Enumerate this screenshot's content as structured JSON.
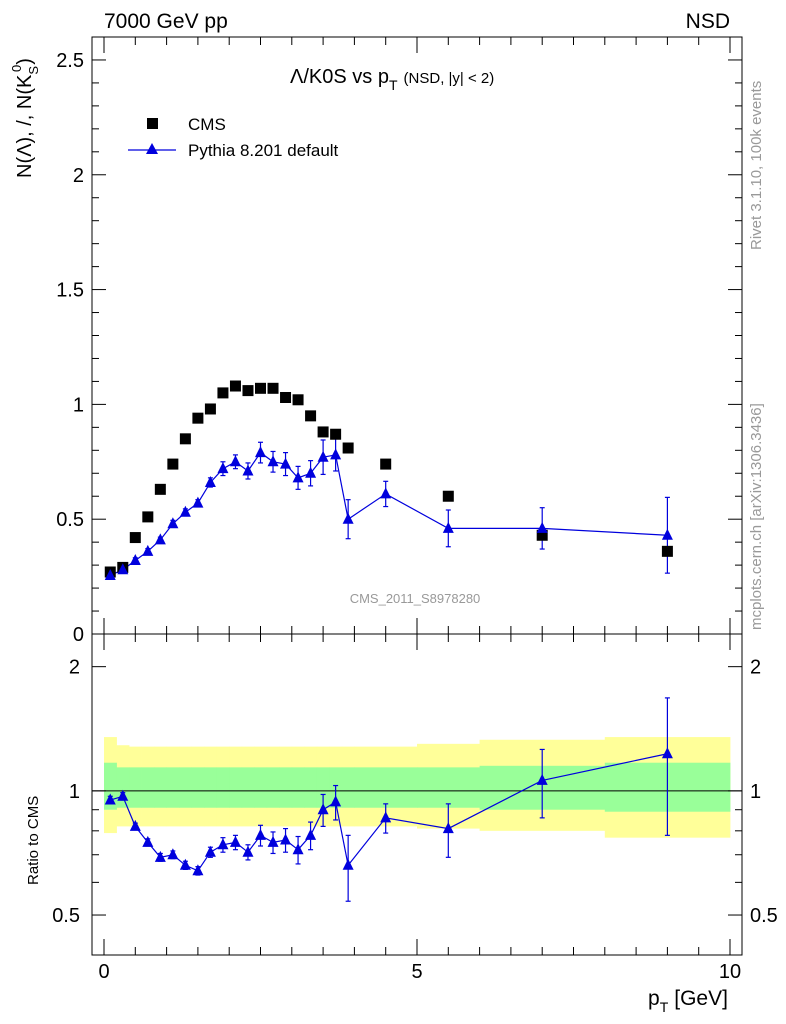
{
  "header": {
    "left": "7000 GeV pp",
    "right": "NSD"
  },
  "side_labels": {
    "rivet": "Rivet 3.1.10,  100k events",
    "mcplots": "mcplots.cern.ch [arXiv:1306.3436]"
  },
  "analysis_tag": "CMS_2011_S8978280",
  "colors": {
    "mc": "#0000dd",
    "data": "#000000",
    "band_outer": "#ffff99",
    "band_inner": "#99ff99"
  },
  "chart_data": [
    {
      "type": "scatter",
      "panel": "main",
      "title": "Λ/K0S vs pT",
      "title_main": "Λ/K0S vs p",
      "title_sub": "T",
      "title_extra": "(NSD, |y| < 2)",
      "ylabel": "N(Λ), /, N(K",
      "ylabel_sub": "S",
      "ylabel_sup": "0",
      "ylabel_end": ")",
      "xlim": [
        0,
        10
      ],
      "ylim": [
        0,
        2.6
      ],
      "y_tick_labels": [
        "0",
        "0.5",
        "1",
        "1.5",
        "2",
        "2.5"
      ],
      "series": [
        {
          "name": "CMS",
          "marker": "square",
          "points": [
            {
              "x": 0.1,
              "y": 0.27
            },
            {
              "x": 0.3,
              "y": 0.29
            },
            {
              "x": 0.5,
              "y": 0.42
            },
            {
              "x": 0.7,
              "y": 0.51
            },
            {
              "x": 0.9,
              "y": 0.63
            },
            {
              "x": 1.1,
              "y": 0.74
            },
            {
              "x": 1.3,
              "y": 0.85
            },
            {
              "x": 1.5,
              "y": 0.94
            },
            {
              "x": 1.7,
              "y": 0.98
            },
            {
              "x": 1.9,
              "y": 1.05
            },
            {
              "x": 2.1,
              "y": 1.08
            },
            {
              "x": 2.3,
              "y": 1.06
            },
            {
              "x": 2.5,
              "y": 1.07
            },
            {
              "x": 2.7,
              "y": 1.07
            },
            {
              "x": 2.9,
              "y": 1.03
            },
            {
              "x": 3.1,
              "y": 1.02
            },
            {
              "x": 3.3,
              "y": 0.95
            },
            {
              "x": 3.5,
              "y": 0.88
            },
            {
              "x": 3.7,
              "y": 0.87
            },
            {
              "x": 3.9,
              "y": 0.81
            },
            {
              "x": 4.5,
              "y": 0.74
            },
            {
              "x": 5.5,
              "y": 0.6
            },
            {
              "x": 7.0,
              "y": 0.43
            },
            {
              "x": 9.0,
              "y": 0.36
            }
          ]
        },
        {
          "name": "Pythia 8.201 default",
          "marker": "triangle",
          "points": [
            {
              "x": 0.1,
              "y": 0.255,
              "err": 0.015
            },
            {
              "x": 0.3,
              "y": 0.28,
              "err": 0.012
            },
            {
              "x": 0.5,
              "y": 0.32,
              "err": 0.012
            },
            {
              "x": 0.7,
              "y": 0.36,
              "err": 0.012
            },
            {
              "x": 0.9,
              "y": 0.41,
              "err": 0.012
            },
            {
              "x": 1.1,
              "y": 0.48,
              "err": 0.015
            },
            {
              "x": 1.3,
              "y": 0.53,
              "err": 0.015
            },
            {
              "x": 1.5,
              "y": 0.57,
              "err": 0.015
            },
            {
              "x": 1.7,
              "y": 0.66,
              "err": 0.02
            },
            {
              "x": 1.9,
              "y": 0.72,
              "err": 0.03
            },
            {
              "x": 2.1,
              "y": 0.75,
              "err": 0.03
            },
            {
              "x": 2.3,
              "y": 0.71,
              "err": 0.035
            },
            {
              "x": 2.5,
              "y": 0.79,
              "err": 0.045
            },
            {
              "x": 2.7,
              "y": 0.75,
              "err": 0.045
            },
            {
              "x": 2.9,
              "y": 0.74,
              "err": 0.05
            },
            {
              "x": 3.1,
              "y": 0.68,
              "err": 0.05
            },
            {
              "x": 3.3,
              "y": 0.7,
              "err": 0.055
            },
            {
              "x": 3.5,
              "y": 0.77,
              "err": 0.075
            },
            {
              "x": 3.7,
              "y": 0.78,
              "err": 0.07
            },
            {
              "x": 3.9,
              "y": 0.5,
              "err": 0.085
            },
            {
              "x": 4.5,
              "y": 0.61,
              "err": 0.055
            },
            {
              "x": 5.5,
              "y": 0.46,
              "err": 0.08
            },
            {
              "x": 7.0,
              "y": 0.46,
              "err": 0.09
            },
            {
              "x": 9.0,
              "y": 0.43,
              "err": 0.165
            }
          ]
        }
      ]
    },
    {
      "type": "line",
      "panel": "ratio",
      "ylabel": "Ratio to CMS",
      "xlabel": "p",
      "xlabel_sub": "T",
      "xlabel_unit": "[GeV]",
      "x_tick_labels": [
        "0",
        "5",
        "10"
      ],
      "y_tick_labels": [
        "0.5",
        "1",
        "2"
      ],
      "xlim": [
        0,
        10
      ],
      "ylim": [
        0.4,
        2.4
      ],
      "log_y": true,
      "reference": 1.0,
      "bands": {
        "edges": [
          0,
          0.2,
          0.4,
          0.6,
          0.8,
          1.0,
          1.2,
          1.4,
          1.6,
          1.8,
          2.0,
          2.2,
          2.4,
          2.6,
          2.8,
          3.0,
          3.2,
          3.4,
          3.6,
          3.8,
          4.0,
          5.0,
          6.0,
          8.0,
          10.0
        ],
        "outer_lo": [
          0.79,
          0.82,
          0.82,
          0.82,
          0.82,
          0.82,
          0.82,
          0.82,
          0.82,
          0.82,
          0.82,
          0.82,
          0.82,
          0.82,
          0.82,
          0.82,
          0.82,
          0.82,
          0.82,
          0.82,
          0.82,
          0.81,
          0.8,
          0.77
        ],
        "outer_hi": [
          1.35,
          1.29,
          1.28,
          1.28,
          1.28,
          1.28,
          1.28,
          1.28,
          1.28,
          1.28,
          1.28,
          1.28,
          1.28,
          1.28,
          1.28,
          1.28,
          1.28,
          1.28,
          1.28,
          1.28,
          1.28,
          1.3,
          1.33,
          1.35
        ],
        "inner_lo": [
          0.9,
          0.91,
          0.91,
          0.91,
          0.91,
          0.91,
          0.91,
          0.91,
          0.91,
          0.91,
          0.91,
          0.91,
          0.91,
          0.91,
          0.91,
          0.91,
          0.91,
          0.91,
          0.91,
          0.91,
          0.91,
          0.91,
          0.9,
          0.89
        ],
        "inner_hi": [
          1.17,
          1.14,
          1.14,
          1.14,
          1.14,
          1.14,
          1.14,
          1.14,
          1.14,
          1.14,
          1.14,
          1.14,
          1.14,
          1.14,
          1.14,
          1.14,
          1.14,
          1.14,
          1.14,
          1.14,
          1.14,
          1.14,
          1.15,
          1.17
        ]
      },
      "series": [
        {
          "name": "Pythia 8.201 default",
          "points": [
            {
              "x": 0.1,
              "y": 0.95,
              "err": 0.02
            },
            {
              "x": 0.3,
              "y": 0.97,
              "err": 0.02
            },
            {
              "x": 0.5,
              "y": 0.82,
              "err": 0.015
            },
            {
              "x": 0.7,
              "y": 0.75,
              "err": 0.015
            },
            {
              "x": 0.9,
              "y": 0.69,
              "err": 0.015
            },
            {
              "x": 1.1,
              "y": 0.7,
              "err": 0.015
            },
            {
              "x": 1.3,
              "y": 0.66,
              "err": 0.015
            },
            {
              "x": 1.5,
              "y": 0.64,
              "err": 0.015
            },
            {
              "x": 1.7,
              "y": 0.71,
              "err": 0.02
            },
            {
              "x": 1.9,
              "y": 0.74,
              "err": 0.03
            },
            {
              "x": 2.1,
              "y": 0.75,
              "err": 0.03
            },
            {
              "x": 2.3,
              "y": 0.71,
              "err": 0.03
            },
            {
              "x": 2.5,
              "y": 0.78,
              "err": 0.045
            },
            {
              "x": 2.7,
              "y": 0.75,
              "err": 0.045
            },
            {
              "x": 2.9,
              "y": 0.76,
              "err": 0.05
            },
            {
              "x": 3.1,
              "y": 0.72,
              "err": 0.055
            },
            {
              "x": 3.3,
              "y": 0.78,
              "err": 0.06
            },
            {
              "x": 3.5,
              "y": 0.9,
              "err": 0.08
            },
            {
              "x": 3.7,
              "y": 0.94,
              "err": 0.09
            },
            {
              "x": 3.9,
              "y": 0.66,
              "err": 0.12
            },
            {
              "x": 4.5,
              "y": 0.86,
              "err": 0.07
            },
            {
              "x": 5.5,
              "y": 0.81,
              "err": 0.12
            },
            {
              "x": 7.0,
              "y": 1.06,
              "err": 0.2
            },
            {
              "x": 9.0,
              "y": 1.23,
              "err": 0.45
            }
          ]
        }
      ]
    }
  ]
}
